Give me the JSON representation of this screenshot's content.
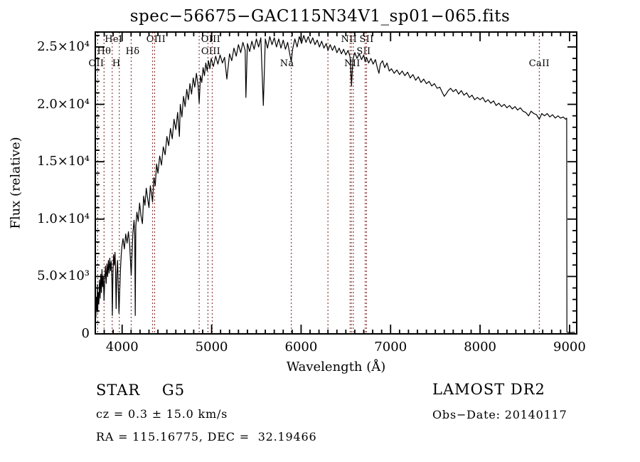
{
  "title": "spec−56675−GAC115N34V1_sp01−065.fits",
  "annotations": {
    "class": "STAR    G5",
    "cz": "cz = 0.3 ± 15.0 km/s",
    "radec": "RA = 115.16775, DEC =  32.19466",
    "survey": "LAMOST DR2",
    "obs_date": "Obs−Date: 20140117"
  },
  "chart_data": {
    "type": "line",
    "title": "spec−56675−GAC115N34V1_sp01−065.fits",
    "xlabel": "Wavelength (Å)",
    "ylabel": "Flux (relative)",
    "xlim": [
      3700,
      9080
    ],
    "ylim": [
      0,
      26300
    ],
    "grid": false,
    "xticks": {
      "major": [
        4000,
        5000,
        6000,
        7000,
        8000,
        9000
      ],
      "labels": [
        "4000",
        "5000",
        "6000",
        "7000",
        "8000",
        "9000"
      ],
      "minor_step": 100
    },
    "yticks": {
      "major": [
        0,
        5000,
        10000,
        15000,
        20000,
        25000
      ],
      "labels": [
        "0",
        "5.0×10³",
        "1.0×10⁴",
        "1.5×10⁴",
        "2.0×10⁴",
        "2.5×10⁴"
      ],
      "minor_step": 1000
    },
    "colors": {
      "spectrum": "#000000",
      "line_marker": "#8f3f3f",
      "frame": "#000000",
      "background": "#ffffff"
    },
    "spectral_lines": [
      {
        "wavelength": 3727,
        "label": "OII",
        "row": 3,
        "dx": -2
      },
      {
        "wavelength": 3798,
        "label": "Hθ",
        "row": 2,
        "dx": 0
      },
      {
        "wavelength": 3889,
        "label": "HeI",
        "row": 1,
        "dx": 2
      },
      {
        "wavelength": 3968,
        "label": "H",
        "row": 3,
        "dx": -4
      },
      {
        "wavelength": 4101,
        "label": "Hδ",
        "row": 2,
        "dx": 2
      },
      {
        "wavelength": 4340,
        "label": "",
        "row": 0,
        "dx": 0
      },
      {
        "wavelength": 4363,
        "label": "OIII",
        "row": 1,
        "dx": 2
      },
      {
        "wavelength": 4861,
        "label": "",
        "row": 0,
        "dx": 0
      },
      {
        "wavelength": 4959,
        "label": "OIII",
        "row": 1,
        "dx": 4
      },
      {
        "wavelength": 5007,
        "label": "OIII",
        "row": 2,
        "dx": -2
      },
      {
        "wavelength": 5890,
        "label": "Na",
        "row": 3,
        "dx": -6
      },
      {
        "wavelength": 6300,
        "label": "",
        "row": 0,
        "dx": 0
      },
      {
        "wavelength": 6548,
        "label": "NII",
        "row": 3,
        "dx": 3
      },
      {
        "wavelength": 6563,
        "label": "",
        "row": 0,
        "dx": 0
      },
      {
        "wavelength": 6583,
        "label": "NII",
        "row": 1,
        "dx": -6
      },
      {
        "wavelength": 6716,
        "label": "SII",
        "row": 1,
        "dx": 2
      },
      {
        "wavelength": 6731,
        "label": "SII",
        "row": 2,
        "dx": -4
      },
      {
        "wavelength": 8662,
        "label": "CaII",
        "row": 3,
        "dx": 0
      }
    ],
    "points": [
      [
        3706,
        1400
      ],
      [
        3712,
        3200
      ],
      [
        3718,
        2100
      ],
      [
        3724,
        4300
      ],
      [
        3727,
        1900
      ],
      [
        3733,
        3600
      ],
      [
        3740,
        2600
      ],
      [
        3747,
        4700
      ],
      [
        3754,
        3100
      ],
      [
        3761,
        5200
      ],
      [
        3768,
        3600
      ],
      [
        3775,
        5600
      ],
      [
        3782,
        4100
      ],
      [
        3790,
        5000
      ],
      [
        3798,
        2900
      ],
      [
        3806,
        4600
      ],
      [
        3814,
        5900
      ],
      [
        3822,
        4400
      ],
      [
        3830,
        6100
      ],
      [
        3838,
        5000
      ],
      [
        3846,
        6400
      ],
      [
        3854,
        5300
      ],
      [
        3862,
        6600
      ],
      [
        3870,
        5500
      ],
      [
        3878,
        6300
      ],
      [
        3886,
        4600
      ],
      [
        3891,
        1600
      ],
      [
        3897,
        5200
      ],
      [
        3904,
        6900
      ],
      [
        3912,
        6000
      ],
      [
        3920,
        7100
      ],
      [
        3926,
        5800
      ],
      [
        3933,
        2200
      ],
      [
        3941,
        5200
      ],
      [
        3949,
        6400
      ],
      [
        3957,
        4200
      ],
      [
        3965,
        1800
      ],
      [
        3973,
        3800
      ],
      [
        3981,
        5600
      ],
      [
        3989,
        6800
      ],
      [
        3997,
        7600
      ],
      [
        4010,
        8300
      ],
      [
        4025,
        7400
      ],
      [
        4040,
        8700
      ],
      [
        4055,
        7900
      ],
      [
        4070,
        8900
      ],
      [
        4085,
        7700
      ],
      [
        4101,
        5100
      ],
      [
        4110,
        6900
      ],
      [
        4120,
        8800
      ],
      [
        4133,
        9900
      ],
      [
        4141,
        8600
      ],
      [
        4147,
        1600
      ],
      [
        4153,
        9400
      ],
      [
        4165,
        10600
      ],
      [
        4180,
        9800
      ],
      [
        4195,
        11400
      ],
      [
        4210,
        10300
      ],
      [
        4227,
        9600
      ],
      [
        4240,
        12000
      ],
      [
        4255,
        11200
      ],
      [
        4270,
        12700
      ],
      [
        4285,
        11800
      ],
      [
        4300,
        11000
      ],
      [
        4315,
        12900
      ],
      [
        4330,
        12100
      ],
      [
        4340,
        11500
      ],
      [
        4355,
        13600
      ],
      [
        4370,
        12900
      ],
      [
        4385,
        14800
      ],
      [
        4400,
        14000
      ],
      [
        4420,
        15500
      ],
      [
        4440,
        14700
      ],
      [
        4460,
        16300
      ],
      [
        4480,
        15600
      ],
      [
        4500,
        17200
      ],
      [
        4520,
        16400
      ],
      [
        4540,
        17900
      ],
      [
        4560,
        17000
      ],
      [
        4580,
        18700
      ],
      [
        4600,
        17800
      ],
      [
        4620,
        19300
      ],
      [
        4640,
        17200
      ],
      [
        4650,
        20000
      ],
      [
        4668,
        18900
      ],
      [
        4686,
        20700
      ],
      [
        4704,
        19800
      ],
      [
        4722,
        21300
      ],
      [
        4740,
        20400
      ],
      [
        4758,
        21800
      ],
      [
        4776,
        20900
      ],
      [
        4794,
        22300
      ],
      [
        4812,
        21500
      ],
      [
        4830,
        22700
      ],
      [
        4848,
        21700
      ],
      [
        4861,
        20100
      ],
      [
        4875,
        22500
      ],
      [
        4890,
        21900
      ],
      [
        4905,
        23200
      ],
      [
        4920,
        22500
      ],
      [
        4935,
        23600
      ],
      [
        4950,
        22900
      ],
      [
        4965,
        23800
      ],
      [
        4980,
        23100
      ],
      [
        4995,
        24000
      ],
      [
        5020,
        23300
      ],
      [
        5045,
        24200
      ],
      [
        5070,
        23500
      ],
      [
        5095,
        24300
      ],
      [
        5120,
        23600
      ],
      [
        5145,
        24100
      ],
      [
        5170,
        22200
      ],
      [
        5185,
        23300
      ],
      [
        5200,
        24400
      ],
      [
        5225,
        23800
      ],
      [
        5250,
        24900
      ],
      [
        5275,
        24200
      ],
      [
        5300,
        25200
      ],
      [
        5325,
        24500
      ],
      [
        5350,
        25400
      ],
      [
        5375,
        24700
      ],
      [
        5383,
        20600
      ],
      [
        5400,
        25300
      ],
      [
        5425,
        24600
      ],
      [
        5450,
        25500
      ],
      [
        5475,
        24800
      ],
      [
        5500,
        25700
      ],
      [
        5525,
        25000
      ],
      [
        5550,
        25800
      ],
      [
        5578,
        19900
      ],
      [
        5600,
        25700
      ],
      [
        5625,
        24900
      ],
      [
        5650,
        25900
      ],
      [
        5675,
        25200
      ],
      [
        5700,
        25800
      ],
      [
        5725,
        25000
      ],
      [
        5750,
        25700
      ],
      [
        5775,
        24900
      ],
      [
        5800,
        25600
      ],
      [
        5825,
        24800
      ],
      [
        5850,
        25400
      ],
      [
        5875,
        24300
      ],
      [
        5890,
        23700
      ],
      [
        5905,
        24800
      ],
      [
        5930,
        25700
      ],
      [
        5955,
        25000
      ],
      [
        5980,
        25900
      ],
      [
        6005,
        25300
      ],
      [
        6030,
        26000
      ],
      [
        6055,
        25400
      ],
      [
        6080,
        25900
      ],
      [
        6105,
        25300
      ],
      [
        6130,
        25800
      ],
      [
        6155,
        25200
      ],
      [
        6180,
        25600
      ],
      [
        6205,
        25000
      ],
      [
        6230,
        25500
      ],
      [
        6255,
        24900
      ],
      [
        6280,
        25300
      ],
      [
        6300,
        24700
      ],
      [
        6325,
        25200
      ],
      [
        6350,
        24700
      ],
      [
        6375,
        25100
      ],
      [
        6400,
        24500
      ],
      [
        6425,
        24900
      ],
      [
        6450,
        24400
      ],
      [
        6475,
        24800
      ],
      [
        6500,
        24300
      ],
      [
        6525,
        24700
      ],
      [
        6548,
        24100
      ],
      [
        6563,
        21600
      ],
      [
        6578,
        23900
      ],
      [
        6600,
        24500
      ],
      [
        6625,
        24000
      ],
      [
        6650,
        24400
      ],
      [
        6675,
        23900
      ],
      [
        6700,
        24300
      ],
      [
        6716,
        23700
      ],
      [
        6731,
        24100
      ],
      [
        6755,
        23600
      ],
      [
        6780,
        24000
      ],
      [
        6805,
        23500
      ],
      [
        6830,
        23900
      ],
      [
        6855,
        23100
      ],
      [
        6870,
        22700
      ],
      [
        6885,
        23500
      ],
      [
        6910,
        23800
      ],
      [
        6935,
        23200
      ],
      [
        6960,
        23600
      ],
      [
        6985,
        22900
      ],
      [
        7010,
        23100
      ],
      [
        7040,
        22700
      ],
      [
        7070,
        23000
      ],
      [
        7100,
        22600
      ],
      [
        7130,
        22900
      ],
      [
        7160,
        22500
      ],
      [
        7190,
        22800
      ],
      [
        7220,
        22300
      ],
      [
        7250,
        22600
      ],
      [
        7280,
        22100
      ],
      [
        7310,
        22400
      ],
      [
        7340,
        21900
      ],
      [
        7370,
        22200
      ],
      [
        7400,
        21800
      ],
      [
        7430,
        22000
      ],
      [
        7460,
        21600
      ],
      [
        7490,
        21800
      ],
      [
        7520,
        21400
      ],
      [
        7550,
        21500
      ],
      [
        7580,
        21000
      ],
      [
        7600,
        20700
      ],
      [
        7620,
        20900
      ],
      [
        7645,
        21200
      ],
      [
        7670,
        21400
      ],
      [
        7700,
        21100
      ],
      [
        7730,
        21300
      ],
      [
        7760,
        20900
      ],
      [
        7790,
        21200
      ],
      [
        7820,
        20800
      ],
      [
        7850,
        21000
      ],
      [
        7880,
        20600
      ],
      [
        7910,
        20800
      ],
      [
        7940,
        20400
      ],
      [
        7970,
        20600
      ],
      [
        8000,
        20400
      ],
      [
        8030,
        20600
      ],
      [
        8060,
        20200
      ],
      [
        8090,
        20400
      ],
      [
        8120,
        20100
      ],
      [
        8150,
        20300
      ],
      [
        8180,
        19900
      ],
      [
        8210,
        20100
      ],
      [
        8240,
        19800
      ],
      [
        8270,
        20000
      ],
      [
        8300,
        19700
      ],
      [
        8330,
        19900
      ],
      [
        8360,
        19600
      ],
      [
        8390,
        19800
      ],
      [
        8420,
        19500
      ],
      [
        8450,
        19700
      ],
      [
        8480,
        19400
      ],
      [
        8510,
        19300
      ],
      [
        8542,
        19000
      ],
      [
        8570,
        19400
      ],
      [
        8600,
        19200
      ],
      [
        8630,
        19100
      ],
      [
        8662,
        18700
      ],
      [
        8690,
        19200
      ],
      [
        8720,
        19000
      ],
      [
        8750,
        19200
      ],
      [
        8780,
        18900
      ],
      [
        8810,
        19100
      ],
      [
        8840,
        18800
      ],
      [
        8870,
        19000
      ],
      [
        8900,
        18800
      ],
      [
        8930,
        18900
      ],
      [
        8955,
        18700
      ],
      [
        8968,
        18800
      ],
      [
        8970,
        150
      ],
      [
        9000,
        120
      ],
      [
        9060,
        130
      ]
    ]
  }
}
